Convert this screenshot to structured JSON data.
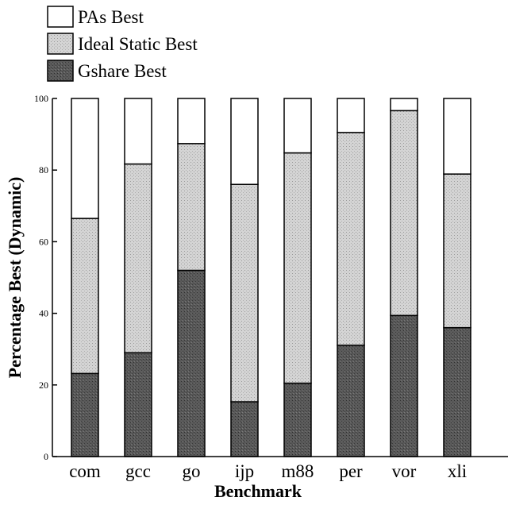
{
  "chart_data": {
    "type": "bar",
    "stacked": true,
    "categories": [
      "com",
      "gcc",
      "go",
      "ijp",
      "m88",
      "per",
      "vor",
      "xli"
    ],
    "series": [
      {
        "name": "Gshare Best",
        "values": [
          23.2,
          29.0,
          52.0,
          15.3,
          20.5,
          31.1,
          39.4,
          36.0
        ],
        "color": "#555555",
        "pattern": "dark-stipple"
      },
      {
        "name": "Ideal Static Best",
        "values": [
          43.3,
          52.7,
          35.4,
          60.7,
          64.3,
          59.4,
          57.2,
          42.9
        ],
        "color": "#cfcfcf",
        "pattern": "light-stipple"
      },
      {
        "name": "PAs Best",
        "values": [
          33.5,
          18.3,
          12.6,
          24.0,
          15.2,
          9.5,
          3.4,
          21.1
        ],
        "color": "#ffffff",
        "pattern": "none"
      }
    ],
    "legend_order": [
      "PAs Best",
      "Ideal Static Best",
      "Gshare Best"
    ],
    "legend_position": "top-left",
    "xlabel": "Benchmark",
    "ylabel": "Percentage Best (Dynamic)",
    "ylim": [
      0,
      100
    ],
    "yticks": [
      0,
      20,
      40,
      60,
      80,
      100
    ],
    "grid": false
  }
}
